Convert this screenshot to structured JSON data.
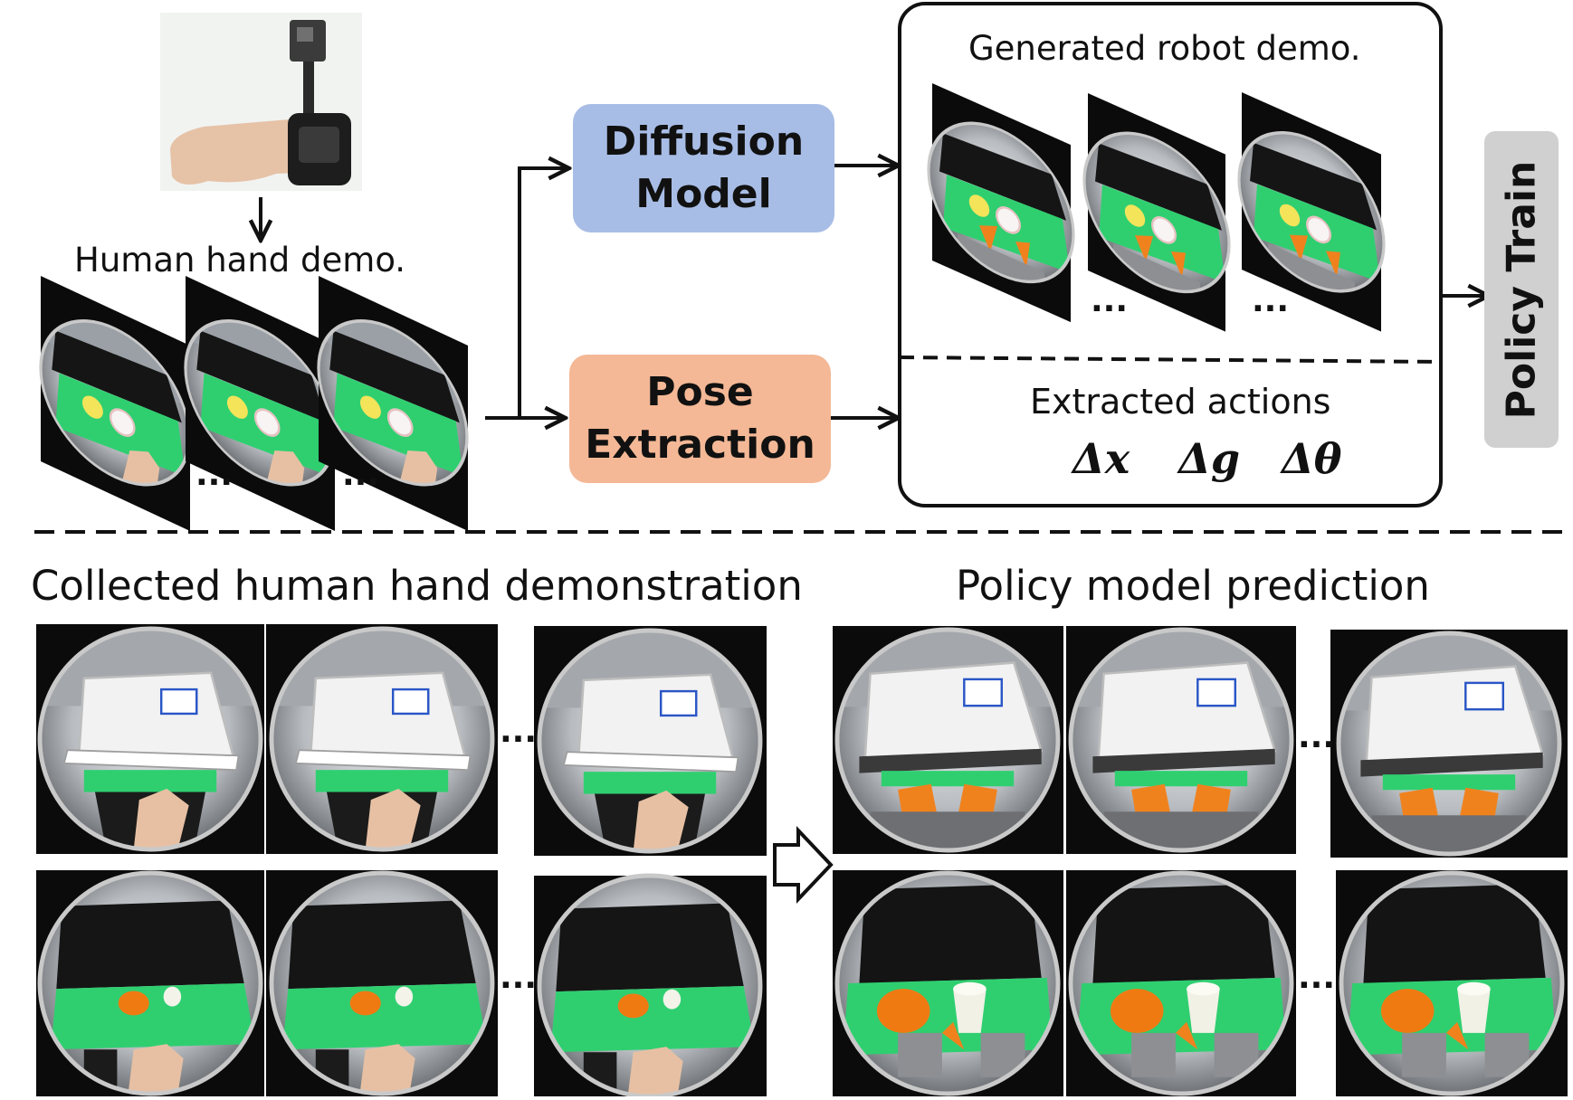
{
  "labels": {
    "human_hand_demo": "Human hand demo.",
    "diffusion_model_line1": "Diffusion",
    "diffusion_model_line2": "Model",
    "pose_extraction_line1": "Pose",
    "pose_extraction_line2": "Extraction",
    "generated_robot_demo": "Generated robot demo.",
    "extracted_actions": "Extracted actions",
    "delta_x": "Δx",
    "delta_g": "Δg",
    "delta_theta": "Δθ",
    "policy_train": "Policy Train",
    "collected_human_demo": "Collected human hand demonstration",
    "policy_prediction": "Policy model prediction",
    "ellipsis": "..."
  },
  "colors": {
    "diffusion_box": "#a8bde6",
    "pose_box": "#f4b896",
    "policy_train_box": "#d0d0d0",
    "mat_green": "#2fcf70",
    "drawer_white": "#f2f2f2",
    "bowl_orange": "#f07a12",
    "gripper_orange": "#f0821e"
  },
  "icons": [
    "wrist-camera-photo",
    "arrow-icon",
    "hollow-arrow-icon"
  ]
}
